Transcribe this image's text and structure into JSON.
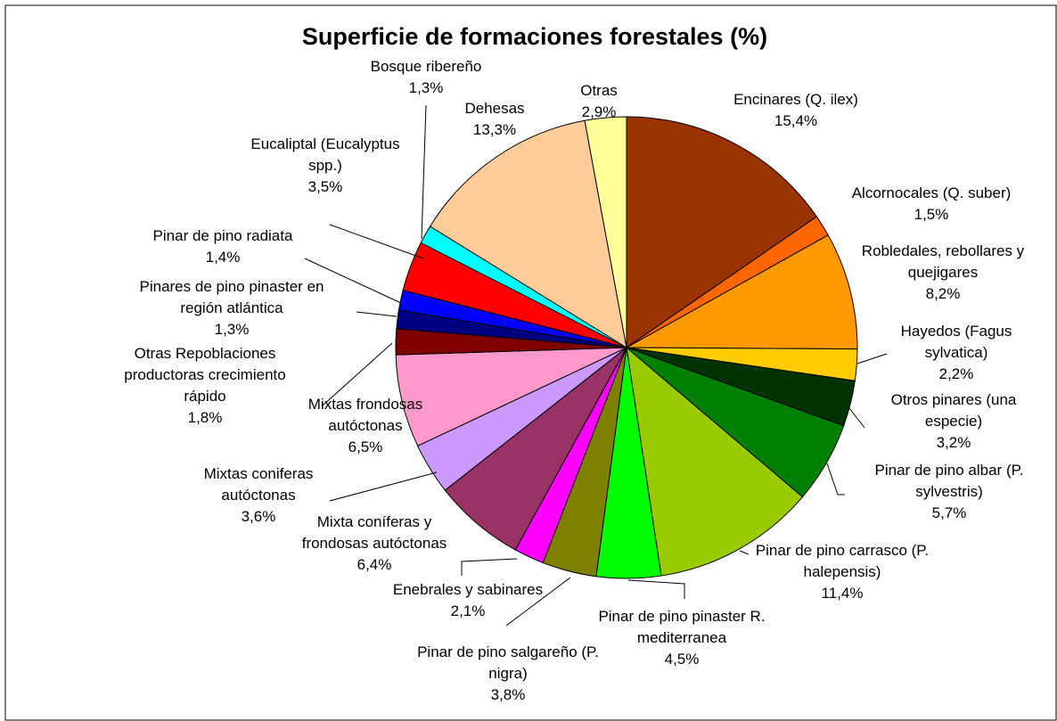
{
  "chart_data": {
    "type": "pie",
    "title": "Superficie de formaciones forestales (%)",
    "categories": [
      "Encinares (Q. ilex)",
      "Alcornocales (Q. suber)",
      "Robledales, rebollares y quejigares",
      "Hayedos (Fagus sylvatica)",
      "Otros pinares (una especie)",
      "Pinar de pino albar (P. sylvestris)",
      "Pinar de pino carrasco (P. halepensis)",
      "Pinar de pino pinaster R. mediterranea",
      "Pinar de pino salgareño (P. nigra)",
      "Enebrales y sabinares",
      "Mixta coníferas y frondosas autóctonas",
      "Mixtas coniferas autóctonas",
      "Mixtas frondosas autóctonas",
      "Otras Repoblaciones productoras crecimiento rápido",
      "Pinares de pino pinaster en región atlántica",
      "Pinar de pino radiata",
      "Eucaliptal (Eucalyptus spp.)",
      "Bosque ribereño",
      "Dehesas",
      "Otras"
    ],
    "values": [
      15.4,
      1.5,
      8.2,
      2.2,
      3.2,
      5.7,
      11.4,
      4.5,
      3.8,
      2.1,
      6.4,
      3.6,
      6.5,
      1.8,
      1.3,
      1.4,
      3.5,
      1.3,
      13.3,
      2.9
    ],
    "value_labels": [
      "15,4%",
      "1,5%",
      "8,2%",
      "2,2%",
      "3,2%",
      "5,7%",
      "11,4%",
      "4,5%",
      "3,8%",
      "2,1%",
      "6,4%",
      "3,6%",
      "6,5%",
      "1,8%",
      "1,3%",
      "1,4%",
      "3,5%",
      "1,3%",
      "13,3%",
      "2,9%"
    ],
    "colors": [
      "#993300",
      "#ff6600",
      "#ff9900",
      "#ffcc00",
      "#003300",
      "#008000",
      "#99cc00",
      "#00ff00",
      "#808000",
      "#ff00ff",
      "#993366",
      "#cc99ff",
      "#ff99cc",
      "#800000",
      "#000080",
      "#0000ff",
      "#ff0000",
      "#00ffff",
      "#ffcc99",
      "#ffff99"
    ]
  }
}
